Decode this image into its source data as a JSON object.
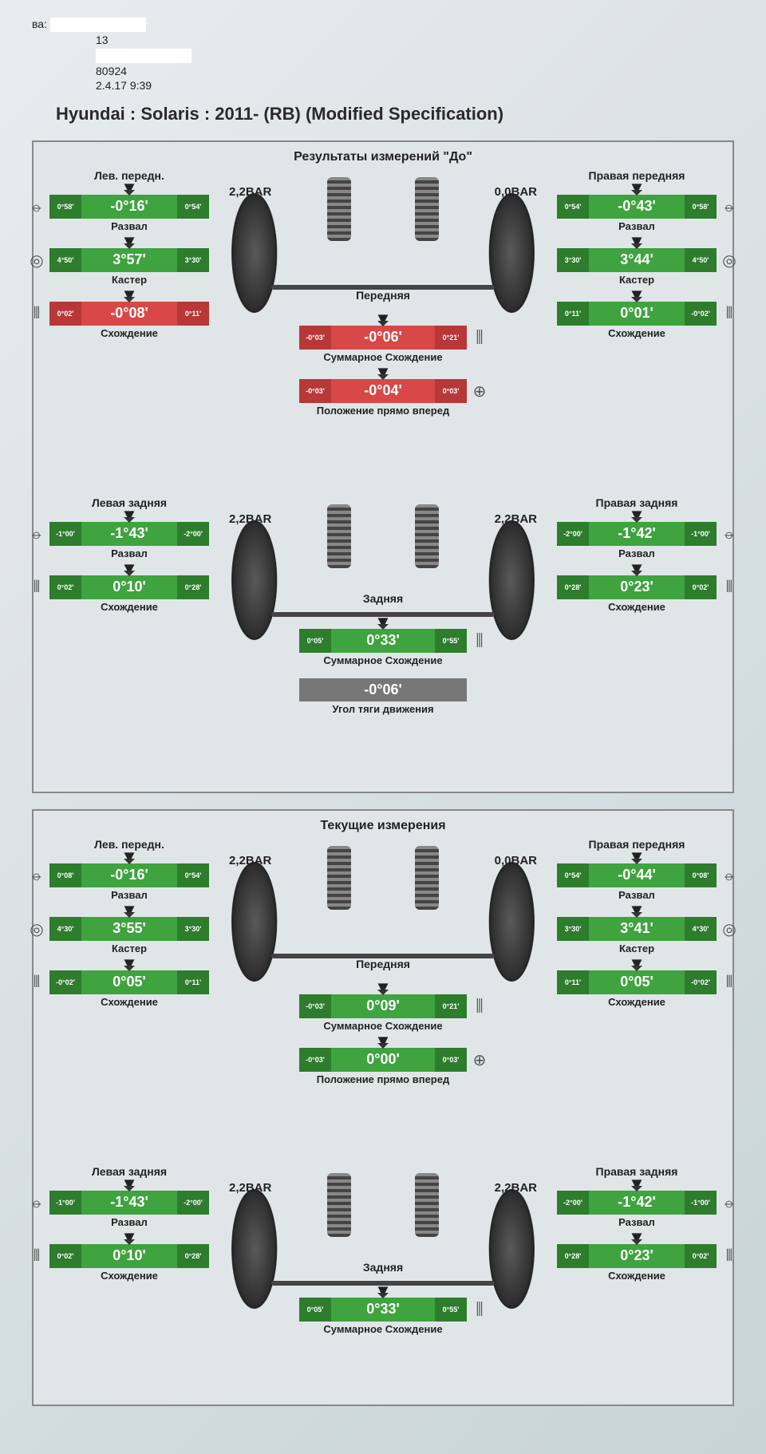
{
  "colors": {
    "ok": "#3fa33f",
    "ok_dark": "#2d7d2d",
    "bad": "#d84848",
    "bad_dark": "#b83838",
    "neutral": "#888888",
    "neutral_dark": "#666666",
    "text": "#222222",
    "page_bg": "#e0e6e8"
  },
  "header": {
    "label_left": "ва:",
    "line2": "13",
    "line3": "80924",
    "line4": "2.4.17 9:39"
  },
  "vehicle": "Hyundai : Solaris : 2011-   (RB) (Modified Specification)",
  "sections": [
    {
      "title": "Результаты измерений \"До\"",
      "front": {
        "pressure_left": "2,2BAR",
        "pressure_right": "0,0BAR",
        "axle_label": "Передняя",
        "left_title": "Лев. передн.",
        "right_title": "Правая передняя",
        "left": [
          {
            "tol_lo": "0°58'",
            "val": "-0°16'",
            "tol_hi": "0°54'",
            "label": "Развал",
            "status": "ok"
          },
          {
            "tol_lo": "4°50'",
            "val": "3°57'",
            "tol_hi": "3°30'",
            "label": "Кастер",
            "status": "ok"
          },
          {
            "tol_lo": "0°02'",
            "val": "-0°08'",
            "tol_hi": "0°11'",
            "label": "Схождение",
            "status": "bad"
          }
        ],
        "right": [
          {
            "tol_lo": "0°54'",
            "val": "-0°43'",
            "tol_hi": "0°58'",
            "label": "Развал",
            "status": "ok"
          },
          {
            "tol_lo": "3°30'",
            "val": "3°44'",
            "tol_hi": "4°50'",
            "label": "Кастер",
            "status": "ok"
          },
          {
            "tol_lo": "0°11'",
            "val": "0°01'",
            "tol_hi": "-0°02'",
            "label": "Схождение",
            "status": "ok"
          }
        ],
        "center": [
          {
            "tol_lo": "-0°03'",
            "val": "-0°06'",
            "tol_hi": "0°21'",
            "label": "Суммарное Схождение",
            "status": "bad"
          },
          {
            "tol_lo": "-0°03'",
            "val": "-0°04'",
            "tol_hi": "0°03'",
            "label": "Положение прямо вперед",
            "status": "bad"
          }
        ]
      },
      "rear": {
        "pressure_left": "2,2BAR",
        "pressure_right": "2,2BAR",
        "axle_label": "Задняя",
        "left_title": "Левая задняя",
        "right_title": "Правая задняя",
        "left": [
          {
            "tol_lo": "-1°00'",
            "val": "-1°43'",
            "tol_hi": "-2°00'",
            "label": "Развал",
            "status": "ok"
          },
          {
            "tol_lo": "0°02'",
            "val": "0°10'",
            "tol_hi": "0°28'",
            "label": "Схождение",
            "status": "ok"
          }
        ],
        "right": [
          {
            "tol_lo": "-2°00'",
            "val": "-1°42'",
            "tol_hi": "-1°00'",
            "label": "Развал",
            "status": "ok"
          },
          {
            "tol_lo": "0°28'",
            "val": "0°23'",
            "tol_hi": "0°02'",
            "label": "Схождение",
            "status": "ok"
          }
        ],
        "center": [
          {
            "tol_lo": "0°05'",
            "val": "0°33'",
            "tol_hi": "0°55'",
            "label": "Суммарное Схождение",
            "status": "ok"
          }
        ],
        "thrust": {
          "val": "-0°06'",
          "label": "Угол тяги движения"
        }
      }
    },
    {
      "title": "Текущие измерения",
      "front": {
        "pressure_left": "2,2BAR",
        "pressure_right": "0,0BAR",
        "axle_label": "Передняя",
        "left_title": "Лев. передн.",
        "right_title": "Правая передняя",
        "left": [
          {
            "tol_lo": "0°08'",
            "val": "-0°16'",
            "tol_hi": "0°54'",
            "label": "Развал",
            "status": "ok"
          },
          {
            "tol_lo": "4°30'",
            "val": "3°55'",
            "tol_hi": "3°30'",
            "label": "Кастер",
            "status": "ok"
          },
          {
            "tol_lo": "-0°02'",
            "val": "0°05'",
            "tol_hi": "0°11'",
            "label": "Схождение",
            "status": "ok"
          }
        ],
        "right": [
          {
            "tol_lo": "0°54'",
            "val": "-0°44'",
            "tol_hi": "0°08'",
            "label": "Развал",
            "status": "ok"
          },
          {
            "tol_lo": "3°30'",
            "val": "3°41'",
            "tol_hi": "4°30'",
            "label": "Кастер",
            "status": "ok"
          },
          {
            "tol_lo": "0°11'",
            "val": "0°05'",
            "tol_hi": "-0°02'",
            "label": "Схождение",
            "status": "ok"
          }
        ],
        "center": [
          {
            "tol_lo": "-0°03'",
            "val": "0°09'",
            "tol_hi": "0°21'",
            "label": "Суммарное Схождение",
            "status": "ok"
          },
          {
            "tol_lo": "-0°03'",
            "val": "0°00'",
            "tol_hi": "0°03'",
            "label": "Положение прямо вперед",
            "status": "ok"
          }
        ]
      },
      "rear": {
        "pressure_left": "2,2BAR",
        "pressure_right": "2,2BAR",
        "axle_label": "Задняя",
        "left_title": "Левая задняя",
        "right_title": "Правая задняя",
        "left": [
          {
            "tol_lo": "-1°00'",
            "val": "-1°43'",
            "tol_hi": "-2°00'",
            "label": "Развал",
            "status": "ok"
          },
          {
            "tol_lo": "0°02'",
            "val": "0°10'",
            "tol_hi": "0°28'",
            "label": "Схождение",
            "status": "ok"
          }
        ],
        "right": [
          {
            "tol_lo": "-2°00'",
            "val": "-1°42'",
            "tol_hi": "-1°00'",
            "label": "Развал",
            "status": "ok"
          },
          {
            "tol_lo": "0°28'",
            "val": "0°23'",
            "tol_hi": "0°02'",
            "label": "Схождение",
            "status": "ok"
          }
        ],
        "center": [
          {
            "tol_lo": "0°05'",
            "val": "0°33'",
            "tol_hi": "0°55'",
            "label": "Суммарное Схождение",
            "status": "ok"
          }
        ]
      }
    }
  ],
  "icons": {
    "camber": "⦵",
    "caster": "◎",
    "toe": "⫴",
    "total_toe": "⫼",
    "steer": "⊕"
  }
}
